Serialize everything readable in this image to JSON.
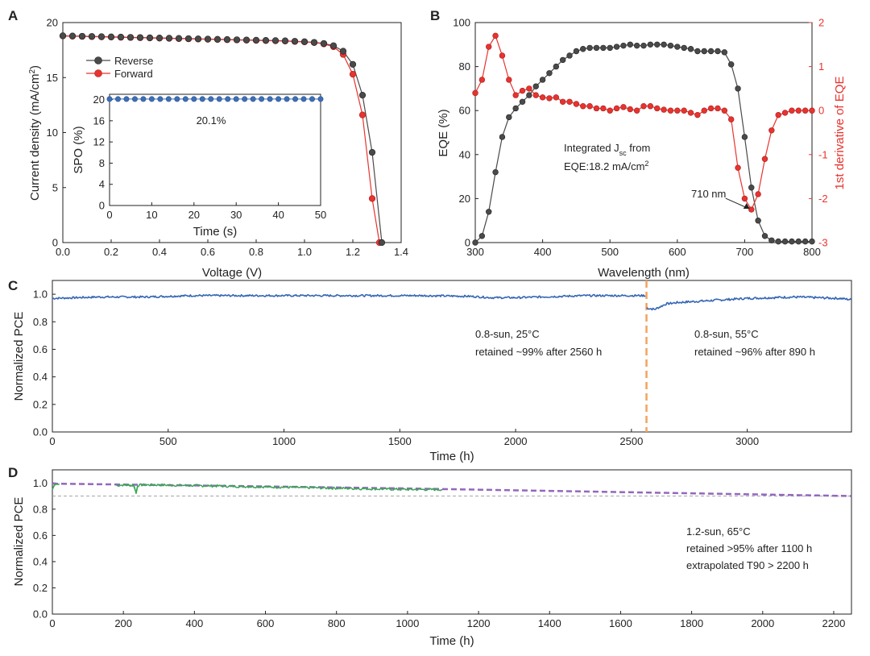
{
  "colors": {
    "axis": "#222222",
    "reverse": "#4a4a4a",
    "forward": "#e8332e",
    "spo": "#3d6fb6",
    "eqe": "#4a4a4a",
    "derivative": "#e8332e",
    "stabilityC": "#3566b5",
    "stabilityD": "#3aa655",
    "extrapolation": "#9467bd",
    "divider": "#f2a35e",
    "reference": "#9a9a9a"
  },
  "panels": {
    "A": "A",
    "B": "B",
    "C": "C",
    "D": "D"
  },
  "chart_data": [
    {
      "id": "A",
      "type": "line",
      "xlabel": "Voltage (V)",
      "ylabel": "Current density (mA/cm²)",
      "ylabel_main": "Current density (mA/cm",
      "ylabel_sup": "2",
      "ylabel_end": ")",
      "xlim": [
        0,
        1.4
      ],
      "ylim": [
        0,
        20
      ],
      "xticks": [
        "0.0",
        "0.2",
        "0.4",
        "0.6",
        "0.8",
        "1.0",
        "1.2",
        "1.4"
      ],
      "yticks": [
        "0",
        "5",
        "10",
        "15",
        "20"
      ],
      "legend": {
        "position": "upper-left",
        "entries": [
          "Reverse",
          "Forward"
        ]
      },
      "series": [
        {
          "name": "Reverse",
          "x": [
            0,
            0.04,
            0.08,
            0.12,
            0.16,
            0.2,
            0.24,
            0.28,
            0.32,
            0.36,
            0.4,
            0.44,
            0.48,
            0.52,
            0.56,
            0.6,
            0.64,
            0.68,
            0.72,
            0.76,
            0.8,
            0.84,
            0.88,
            0.92,
            0.96,
            1.0,
            1.04,
            1.08,
            1.12,
            1.16,
            1.2,
            1.24,
            1.28,
            1.32
          ],
          "y": [
            18.8,
            18.78,
            18.76,
            18.74,
            18.72,
            18.7,
            18.68,
            18.66,
            18.64,
            18.62,
            18.6,
            18.58,
            18.56,
            18.54,
            18.52,
            18.5,
            18.48,
            18.46,
            18.44,
            18.42,
            18.4,
            18.38,
            18.36,
            18.34,
            18.3,
            18.26,
            18.2,
            18.1,
            17.9,
            17.4,
            16.2,
            13.4,
            8.2,
            0
          ]
        },
        {
          "name": "Forward",
          "x": [
            0,
            0.04,
            0.08,
            0.12,
            0.16,
            0.2,
            0.24,
            0.28,
            0.32,
            0.36,
            0.4,
            0.44,
            0.48,
            0.52,
            0.56,
            0.6,
            0.64,
            0.68,
            0.72,
            0.76,
            0.8,
            0.84,
            0.88,
            0.92,
            0.96,
            1.0,
            1.04,
            1.08,
            1.12,
            1.16,
            1.2,
            1.24,
            1.28,
            1.31
          ],
          "y": [
            18.78,
            18.76,
            18.74,
            18.72,
            18.7,
            18.68,
            18.66,
            18.64,
            18.62,
            18.6,
            18.58,
            18.56,
            18.54,
            18.52,
            18.5,
            18.48,
            18.46,
            18.44,
            18.42,
            18.4,
            18.38,
            18.36,
            18.34,
            18.32,
            18.28,
            18.24,
            18.18,
            18.06,
            17.8,
            17.1,
            15.3,
            11.6,
            4.0,
            0
          ]
        }
      ],
      "inset": {
        "type": "line",
        "xlabel": "Time (s)",
        "ylabel": "SPO (%)",
        "xlim": [
          0,
          50
        ],
        "ylim": [
          0,
          21
        ],
        "xticks": [
          "0",
          "10",
          "20",
          "30",
          "40",
          "50"
        ],
        "yticks": [
          "0",
          "4",
          "8",
          "12",
          "16",
          "20"
        ],
        "annotation": "20.1%",
        "series": [
          {
            "name": "SPO",
            "x": [
              0,
              2,
              4,
              6,
              8,
              10,
              12,
              14,
              16,
              18,
              20,
              22,
              24,
              26,
              28,
              30,
              32,
              34,
              36,
              38,
              40,
              42,
              44,
              46,
              48,
              50
            ],
            "y": [
              20.1,
              20.1,
              20.1,
              20.1,
              20.1,
              20.1,
              20.1,
              20.1,
              20.1,
              20.1,
              20.1,
              20.1,
              20.1,
              20.1,
              20.1,
              20.1,
              20.1,
              20.1,
              20.1,
              20.1,
              20.1,
              20.1,
              20.1,
              20.1,
              20.1,
              20.1
            ]
          }
        ]
      }
    },
    {
      "id": "B",
      "type": "line",
      "xlabel": "Wavelength (nm)",
      "ylabel": "EQE (%)",
      "ylabel_right": "1st derivative of EQE",
      "xlim": [
        300,
        800
      ],
      "ylim": [
        0,
        100
      ],
      "ylim_right": [
        -3,
        2
      ],
      "xticks": [
        "300",
        "400",
        "500",
        "600",
        "700",
        "800"
      ],
      "yticks": [
        "0",
        "20",
        "40",
        "60",
        "80",
        "100"
      ],
      "yticks_right": [
        "-3",
        "-2",
        "-1",
        "0",
        "1",
        "2"
      ],
      "annotation_jsc_line1_main": "Integrated J",
      "annotation_jsc_line1_sub": "sc",
      "annotation_jsc_line1_end": " from",
      "annotation_jsc_line2_main": "EQE:18.2 mA/cm",
      "annotation_jsc_line2_sup": "2",
      "annotation_jsc": "Integrated Jsc from EQE:18.2 mA/cm2",
      "annotation_peak": "710 nm",
      "peak": {
        "x": 710,
        "y": -2.25
      },
      "series": [
        {
          "name": "EQE",
          "axis": "left",
          "x": [
            300,
            310,
            320,
            330,
            340,
            350,
            360,
            370,
            380,
            390,
            400,
            410,
            420,
            430,
            440,
            450,
            460,
            470,
            480,
            490,
            500,
            510,
            520,
            530,
            540,
            550,
            560,
            570,
            580,
            590,
            600,
            610,
            620,
            630,
            640,
            650,
            660,
            670,
            680,
            690,
            700,
            710,
            720,
            730,
            740,
            750,
            760,
            770,
            780,
            790,
            800
          ],
          "y": [
            0,
            3,
            14,
            32,
            48,
            57,
            61,
            64,
            67,
            71,
            74,
            77,
            80,
            83,
            85,
            87,
            88,
            88.5,
            88.5,
            88.5,
            88.5,
            89,
            89.5,
            90,
            89.5,
            89.5,
            90,
            90,
            90,
            89.5,
            89,
            88.5,
            88,
            87,
            87,
            87,
            87,
            86.5,
            81,
            70,
            48,
            25,
            10,
            3,
            1,
            0.5,
            0.5,
            0.5,
            0.5,
            0.5,
            0.5
          ]
        },
        {
          "name": "1st derivative of EQE",
          "axis": "right",
          "x": [
            300,
            310,
            320,
            330,
            340,
            350,
            360,
            370,
            380,
            390,
            400,
            410,
            420,
            430,
            440,
            450,
            460,
            470,
            480,
            490,
            500,
            510,
            520,
            530,
            540,
            550,
            560,
            570,
            580,
            590,
            600,
            610,
            620,
            630,
            640,
            650,
            660,
            670,
            680,
            690,
            700,
            710,
            720,
            730,
            740,
            750,
            760,
            770,
            780,
            790,
            800
          ],
          "y": [
            0.4,
            0.7,
            1.45,
            1.7,
            1.25,
            0.7,
            0.35,
            0.45,
            0.5,
            0.35,
            0.3,
            0.28,
            0.3,
            0.2,
            0.2,
            0.15,
            0.1,
            0.1,
            0.05,
            0.05,
            0.0,
            0.05,
            0.08,
            0.03,
            0.0,
            0.1,
            0.1,
            0.05,
            0.02,
            0.0,
            0.0,
            0.0,
            -0.05,
            -0.1,
            0.0,
            0.05,
            0.05,
            0.0,
            -0.2,
            -1.3,
            -2.0,
            -2.25,
            -1.9,
            -1.1,
            -0.45,
            -0.1,
            -0.05,
            0.0,
            0.0,
            0.0,
            0.0
          ]
        }
      ]
    },
    {
      "id": "C",
      "type": "line",
      "xlabel": "Time (h)",
      "ylabel": "Normalized PCE",
      "xlim": [
        0,
        3450
      ],
      "ylim": [
        0,
        1.1
      ],
      "xticks": [
        "0",
        "500",
        "1000",
        "1500",
        "2000",
        "2500",
        "3000"
      ],
      "yticks": [
        "0.0",
        "0.2",
        "0.4",
        "0.6",
        "0.8",
        "1.0"
      ],
      "divider_x": 2565,
      "annotation_left_line1": "0.8-sun, 25°C",
      "annotation_left_line2": "retained ~99% after 2560 h",
      "annotation_right_line1": "0.8-sun, 55°C",
      "annotation_right_line2": "retained ~96% after 890 h",
      "series": [
        {
          "name": "0.8-sun 25°C",
          "x": [
            0,
            200,
            400,
            600,
            800,
            1000,
            1200,
            1400,
            1600,
            1800,
            1900,
            2000,
            2100,
            2300,
            2500,
            2560
          ],
          "y": [
            0.97,
            0.98,
            0.98,
            0.99,
            0.99,
            0.99,
            0.99,
            0.99,
            0.99,
            0.985,
            0.975,
            0.975,
            0.98,
            0.99,
            0.99,
            0.99
          ]
        },
        {
          "name": "0.8-sun 55°C",
          "x": [
            2565,
            2600,
            2650,
            2700,
            2800,
            3000,
            3200,
            3400,
            3450
          ],
          "y": [
            0.9,
            0.89,
            0.93,
            0.94,
            0.95,
            0.97,
            0.98,
            0.97,
            0.96
          ]
        }
      ]
    },
    {
      "id": "D",
      "type": "line",
      "xlabel": "Time (h)",
      "ylabel": "Normalized PCE",
      "xlim": [
        0,
        2250
      ],
      "ylim": [
        0,
        1.1
      ],
      "xticks": [
        "0",
        "200",
        "400",
        "600",
        "800",
        "1000",
        "1200",
        "1400",
        "1600",
        "1800",
        "2000",
        "2200"
      ],
      "yticks": [
        "0.0",
        "0.2",
        "0.4",
        "0.6",
        "0.8",
        "1.0"
      ],
      "reference_y": 0.9,
      "annotation_line1": "1.2-sun, 65°C",
      "annotation_line2": "retained >95% after 1100 h",
      "annotation_line3": "extrapolated T90 > 2200 h",
      "series": [
        {
          "name": "1.2-sun 65°C",
          "x": [
            0,
            5,
            10,
            20,
            180,
            200,
            230,
            236,
            240,
            250,
            300,
            400,
            500,
            600,
            700,
            800,
            900,
            1000,
            1100
          ],
          "y": [
            0.95,
            0.98,
            0.99,
            0.99,
            0.98,
            0.985,
            0.98,
            0.92,
            0.98,
            0.985,
            0.985,
            0.98,
            0.975,
            0.97,
            0.965,
            0.96,
            0.955,
            0.95,
            0.95
          ]
        },
        {
          "name": "Extrapolation",
          "x": [
            0,
            500,
            1000,
            1500,
            2000,
            2250
          ],
          "y": [
            0.995,
            0.977,
            0.958,
            0.935,
            0.912,
            0.9
          ]
        }
      ]
    }
  ]
}
